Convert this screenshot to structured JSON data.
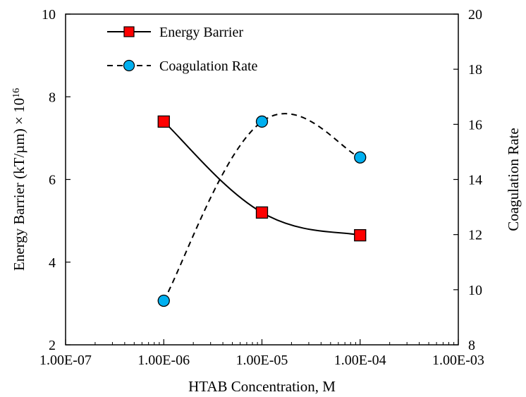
{
  "chart_data": {
    "type": "line",
    "xlabel": "HTAB Concentration, M",
    "ylabel_left": "Energy Barrier (kT/µm) × 10",
    "ylabel_left_superscript": "16",
    "ylabel_right": "Coagulation Rate",
    "x_scale": "log",
    "xlim": [
      1e-07,
      0.001
    ],
    "ylim_left": [
      2,
      10
    ],
    "ylim_right": [
      8,
      20
    ],
    "x_ticks": [
      {
        "value": 1e-07,
        "label": "1.00E-07"
      },
      {
        "value": 1e-06,
        "label": "1.00E-06"
      },
      {
        "value": 1e-05,
        "label": "1.00E-05"
      },
      {
        "value": 0.0001,
        "label": "1.00E-04"
      },
      {
        "value": 0.001,
        "label": "1.00E-03"
      }
    ],
    "y_left_ticks": [
      {
        "value": 2,
        "label": "2"
      },
      {
        "value": 4,
        "label": "4"
      },
      {
        "value": 6,
        "label": "6"
      },
      {
        "value": 8,
        "label": "8"
      },
      {
        "value": 10,
        "label": "10"
      }
    ],
    "y_right_ticks": [
      {
        "value": 8,
        "label": "8"
      },
      {
        "value": 10,
        "label": "10"
      },
      {
        "value": 12,
        "label": "12"
      },
      {
        "value": 14,
        "label": "14"
      },
      {
        "value": 16,
        "label": "16"
      },
      {
        "value": 18,
        "label": "18"
      },
      {
        "value": 20,
        "label": "20"
      }
    ],
    "grid": false,
    "legend_position": "top-left",
    "series": [
      {
        "name": "Energy Barrier",
        "axis": "left",
        "line_style": "solid",
        "marker": "square",
        "marker_color": "#ff0000",
        "x": [
          1e-06,
          1e-05,
          0.0001
        ],
        "y": [
          7.4,
          5.2,
          4.65
        ]
      },
      {
        "name": "Coagulation Rate",
        "axis": "right",
        "line_style": "dashed",
        "marker": "circle",
        "marker_color": "#00b0f0",
        "x": [
          1e-06,
          1e-05,
          0.0001
        ],
        "y": [
          9.6,
          16.1,
          14.8
        ]
      }
    ]
  }
}
